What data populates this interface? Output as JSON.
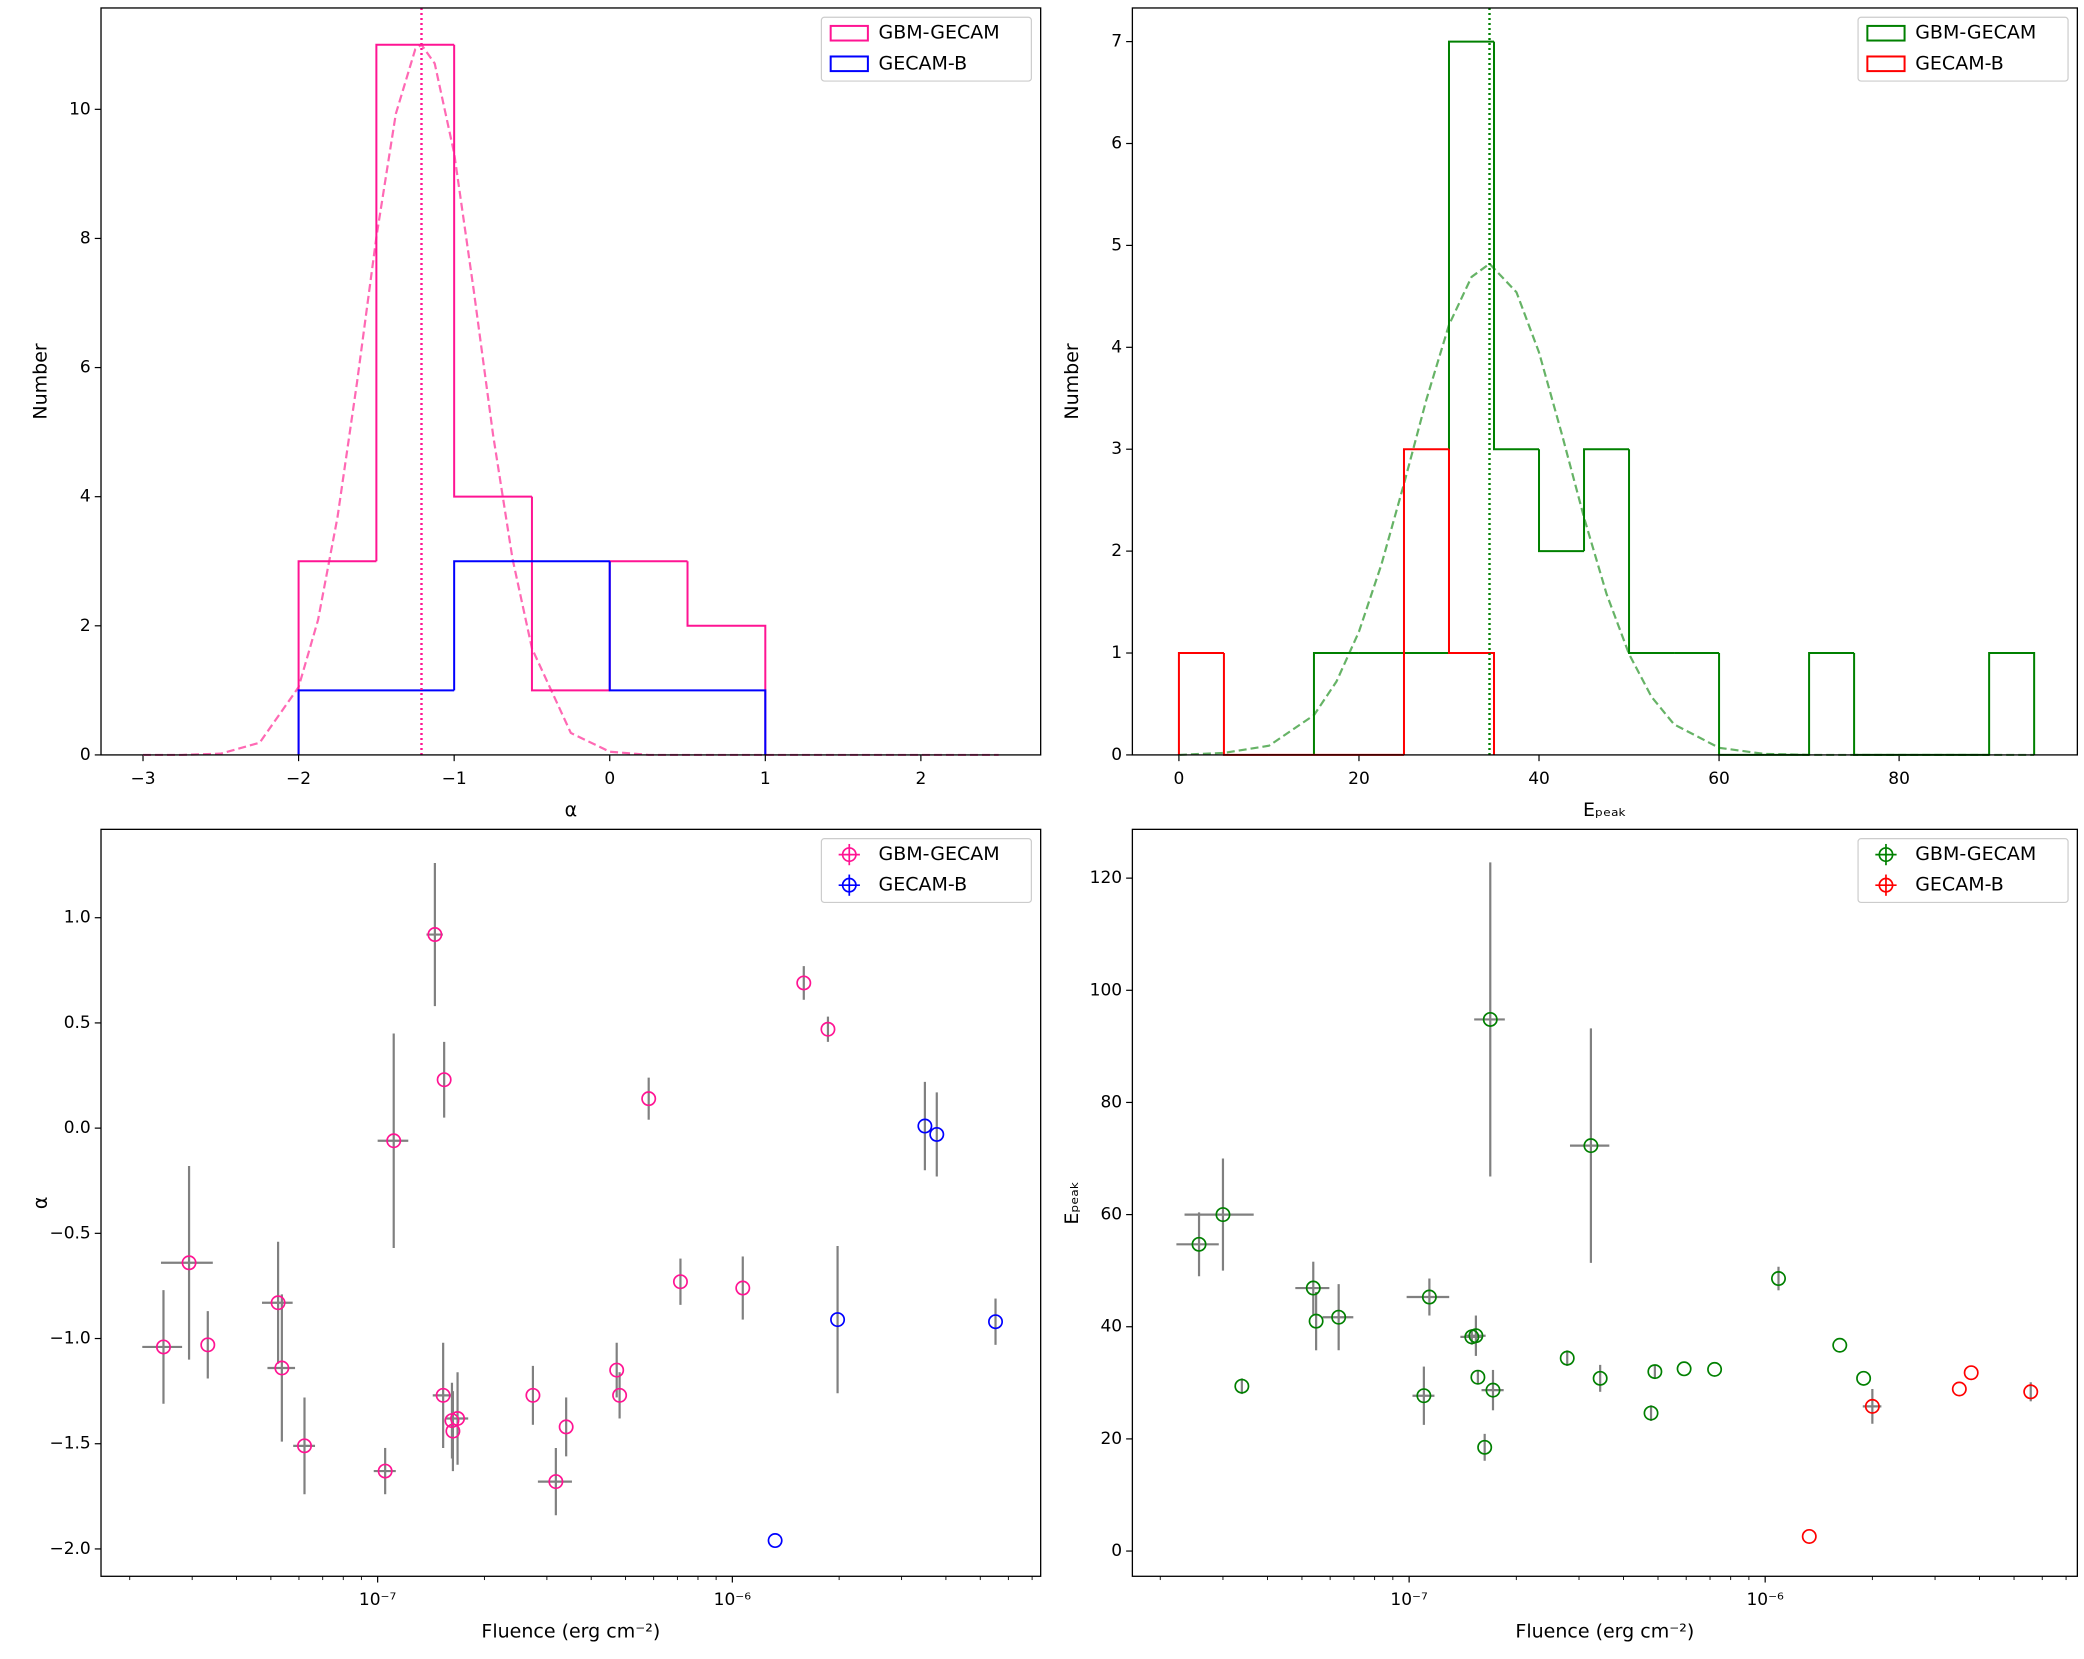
{
  "chart_data": [
    {
      "type": "histogram",
      "xlabel": "α",
      "ylabel": "Number",
      "xlim": [
        -3.27,
        2.77
      ],
      "ylim": [
        0,
        11.57
      ],
      "xticks": [
        {
          "value": -3,
          "label": "−3"
        },
        {
          "value": -2,
          "label": "−2"
        },
        {
          "value": -1,
          "label": "−1"
        },
        0,
        1,
        2
      ],
      "yticks": [
        0,
        2,
        4,
        6,
        8,
        10
      ],
      "legend": "upper right",
      "series": [
        {
          "name": "GBM-GECAM",
          "color": "#ff1493",
          "bins": [
            -2,
            -1.5,
            -1,
            -0.5,
            0,
            0.5,
            1
          ],
          "values": [
            3,
            11,
            4,
            1,
            3,
            2
          ]
        },
        {
          "name": "GECAM-B",
          "color": "#0000ff",
          "bins": [
            -2,
            -1,
            0,
            1
          ],
          "values": [
            1,
            3,
            1
          ]
        }
      ],
      "fit": {
        "color": "#ff69b4",
        "x": [
          -3,
          -2.75,
          -2.5,
          -2.25,
          -2,
          -1.875,
          -1.75,
          -1.625,
          -1.5,
          -1.375,
          -1.25,
          -1.21,
          -1.125,
          -1,
          -0.875,
          -0.75,
          -0.625,
          -0.5,
          -0.25,
          0,
          0.25,
          0.5,
          1,
          1.5,
          2,
          2.5
        ],
        "values": [
          0,
          0,
          0.02,
          0.19,
          1.05,
          2.09,
          3.68,
          5.76,
          8.02,
          9.93,
          10.93,
          11,
          10.71,
          9.32,
          7.21,
          4.96,
          3.04,
          1.65,
          0.34,
          0.05,
          0,
          0,
          0,
          0,
          0,
          0
        ]
      },
      "vline": -1.21
    },
    {
      "type": "histogram",
      "xlabel": "Eₚₑₐₖ",
      "ylabel": "Number",
      "xlim": [
        -5.17,
        99.8
      ],
      "ylim": [
        0,
        7.33
      ],
      "xticks": [
        0,
        20,
        40,
        60,
        80
      ],
      "yticks": [
        0,
        1,
        2,
        3,
        4,
        5,
        6,
        7
      ],
      "legend": "upper right",
      "series": [
        {
          "name": "GBM-GECAM",
          "color": "#008000",
          "bins": [
            15,
            20,
            25,
            30,
            35,
            40,
            45,
            50,
            55,
            60,
            65,
            70,
            75,
            80,
            85,
            90,
            95
          ],
          "values": [
            1,
            1,
            1,
            7,
            3,
            2,
            3,
            1,
            1,
            0,
            0,
            1,
            0,
            0,
            0,
            1
          ]
        },
        {
          "name": "GECAM-B",
          "color": "#ff0000",
          "bins": [
            0,
            5,
            10,
            15,
            20,
            25,
            30,
            35
          ],
          "values": [
            1,
            0,
            0,
            0,
            0,
            3,
            1
          ]
        }
      ],
      "fit": {
        "color": "#66b366",
        "x": [
          0,
          5,
          10,
          15,
          17.5,
          20,
          22.5,
          25,
          27.5,
          30,
          32.5,
          34.5,
          37.5,
          40,
          42.5,
          45,
          47.5,
          50,
          52.5,
          55,
          60,
          65,
          70,
          75,
          80,
          85,
          90,
          95
        ],
        "values": [
          0,
          0.02,
          0.09,
          0.39,
          0.72,
          1.21,
          1.87,
          2.66,
          3.49,
          4.22,
          4.69,
          4.82,
          4.54,
          3.95,
          3.16,
          2.33,
          1.58,
          0.99,
          0.57,
          0.3,
          0.07,
          0.01,
          0,
          0,
          0,
          0,
          0,
          0
        ]
      },
      "vline": 34.5
    },
    {
      "type": "scatter",
      "xscale": "log",
      "xlabel": "Fluence (erg cm⁻²)",
      "ylabel": "α",
      "xlim": [
        1.66e-08,
        7.4e-06
      ],
      "ylim": [
        -2.13,
        1.42
      ],
      "xticks": [
        {
          "value": 1e-07,
          "label": "10⁻⁷"
        },
        {
          "value": 1e-06,
          "label": "10⁻⁶"
        }
      ],
      "yticks": [
        {
          "value": -2,
          "label": "−2.0"
        },
        {
          "value": -1.5,
          "label": "−1.5"
        },
        {
          "value": -1,
          "label": "−1.0"
        },
        {
          "value": -0.5,
          "label": "−0.5"
        },
        {
          "value": 0,
          "label": "0.0"
        },
        {
          "value": 0.5,
          "label": "0.5"
        },
        {
          "value": 1,
          "label": "1.0"
        }
      ],
      "legend": "upper right",
      "errorbar_color": "#808080",
      "series": [
        {
          "name": "GBM-GECAM",
          "color": "#ff1493",
          "x": [
            2.49e-08,
            2.94e-08,
            3.32e-08,
            5.24e-08,
            5.37e-08,
            6.22e-08,
            1.05e-07,
            1.11e-07,
            1.45e-07,
            1.54e-07,
            1.53e-07,
            1.62e-07,
            1.63e-07,
            1.68e-07,
            2.74e-07,
            3.18e-07,
            3.4e-07,
            4.72e-07,
            4.81e-07,
            5.81e-07,
            7.14e-07,
            1.07e-06,
            1.59e-06,
            1.86e-06
          ],
          "values": [
            -1.04,
            -0.64,
            -1.03,
            -0.83,
            -1.14,
            -1.51,
            -1.63,
            -0.06,
            0.92,
            0.23,
            -1.27,
            -1.39,
            -1.44,
            -1.38,
            -1.27,
            -1.68,
            -1.42,
            -1.15,
            -1.27,
            0.14,
            -0.73,
            -0.76,
            0.69,
            0.47
          ],
          "yerr": [
            0.27,
            0.46,
            0.16,
            0.29,
            0.35,
            0.23,
            0.11,
            0.51,
            0.34,
            0.18,
            0.25,
            0.18,
            0.19,
            0.22,
            0.14,
            0.16,
            0.14,
            0.13,
            0.11,
            0.1,
            0.11,
            0.15,
            0.08,
            0.06
          ],
          "xerr": [
            3.2e-09,
            4.9e-09,
            null,
            5.2e-09,
            4.8e-09,
            4.4e-09,
            7.5e-09,
            1.1e-08,
            7.7e-09,
            null,
            1e-08,
            null,
            null,
            1.2e-08,
            null,
            3.5e-08,
            null,
            null,
            null,
            null,
            null,
            null,
            null,
            null
          ]
        },
        {
          "name": "GECAM-B",
          "color": "#0000ff",
          "x": [
            1.32e-06,
            1.98e-06,
            3.49e-06,
            3.77e-06,
            5.52e-06
          ],
          "values": [
            -1.96,
            -0.91,
            0.01,
            -0.03,
            -0.92
          ],
          "yerr": [
            null,
            0.35,
            0.21,
            0.2,
            0.11
          ]
        }
      ]
    },
    {
      "type": "scatter",
      "xscale": "log",
      "xlabel": "Fluence (erg cm⁻²)",
      "ylabel": "Eₚₑₐₖ",
      "xlim": [
        1.67e-08,
        7.53e-06
      ],
      "ylim": [
        -4.5,
        128.7
      ],
      "xticks": [
        {
          "value": 1e-07,
          "label": "10⁻⁷"
        },
        {
          "value": 1e-06,
          "label": "10⁻⁶"
        }
      ],
      "yticks": [
        0,
        20,
        40,
        60,
        80,
        100,
        120
      ],
      "legend": "upper right",
      "errorbar_color": "#808080",
      "series": [
        {
          "name": "GBM-GECAM",
          "color": "#008000",
          "x": [
            2.57e-08,
            3e-08,
            3.39e-08,
            5.38e-08,
            5.48e-08,
            6.34e-08,
            1.1e-07,
            1.14e-07,
            1.5e-07,
            1.54e-07,
            1.56e-07,
            1.63e-07,
            1.69e-07,
            1.72e-07,
            2.78e-07,
            3.24e-07,
            3.44e-07,
            4.78e-07,
            4.9e-07,
            5.92e-07,
            7.21e-07,
            1.09e-06,
            1.62e-06,
            1.89e-06
          ],
          "values": [
            54.7,
            60.0,
            29.4,
            46.9,
            41.0,
            41.7,
            27.7,
            45.3,
            38.2,
            38.4,
            31.0,
            18.5,
            94.8,
            28.7,
            34.4,
            72.3,
            30.8,
            24.6,
            32.0,
            32.5,
            32.4,
            48.6,
            36.7,
            30.8
          ],
          "yerr": [
            5.7,
            10,
            1.4,
            4.7,
            5.2,
            5.9,
            5.2,
            3.3,
            1.4,
            3.6,
            1.2,
            2.4,
            28,
            3.6,
            1.4,
            20.9,
            2.4,
            1.4,
            1.2,
            null,
            null,
            2.1,
            null,
            null
          ],
          "xerr": [
            3.5e-09,
            6.6e-09,
            null,
            5.9e-09,
            null,
            6.3e-09,
            7.8e-09,
            1.56e-08,
            1.07e-08,
            1e-08,
            null,
            null,
            1.67e-08,
            1.23e-08,
            null,
            4.1e-08,
            null,
            null,
            null,
            null,
            null,
            null,
            null,
            null
          ]
        },
        {
          "name": "GECAM-B",
          "color": "#ff0000",
          "x": [
            1.33e-06,
            2e-06,
            3.51e-06,
            3.79e-06,
            5.57e-06
          ],
          "values": [
            2.6,
            25.8,
            28.9,
            31.8,
            28.4
          ],
          "yerr": [
            null,
            3.1,
            null,
            null,
            1.7
          ],
          "xerr": [
            null,
            1.2e-07,
            null,
            null,
            null
          ]
        }
      ]
    }
  ]
}
